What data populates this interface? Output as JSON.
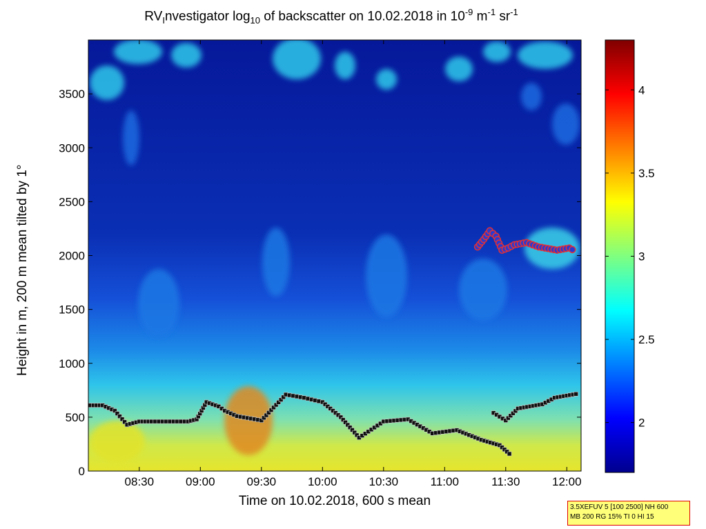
{
  "chart_data": {
    "type": "heatmap",
    "title_parts": {
      "prefix": "RV",
      "prefix_sub": "I",
      "middle": "nvestigator log",
      "middle_sub": "10",
      "rest": " of backscatter on 10.02.2018 in 10",
      "exp1": "-9",
      "unit1": " m",
      "exp2": "-1",
      "unit2": " sr",
      "exp3": "-1"
    },
    "xlabel": "Time on 10.02.2018, 600 s mean",
    "ylabel": "Height in m, 200 m mean tilted by 1°",
    "x_ticks": [
      "08:30",
      "09:00",
      "09:30",
      "10:00",
      "10:30",
      "11:00",
      "11:30",
      "12:00"
    ],
    "x_range_hours": [
      8.083,
      12.117
    ],
    "y_ticks": [
      "0",
      "500",
      "1000",
      "1500",
      "2000",
      "2500",
      "3000",
      "3500"
    ],
    "y_range": [
      0,
      4000
    ],
    "colorbar": {
      "ticks": [
        "2",
        "2.5",
        "3",
        "3.5",
        "4"
      ],
      "range": [
        1.7,
        4.3
      ],
      "colormap": "jet"
    },
    "grid": false,
    "layers": [
      {
        "name": "blue-upper",
        "color": "#0a1f9e"
      },
      {
        "name": "cyan-patches",
        "color": "#2ec8ea"
      },
      {
        "name": "mid-blue",
        "color": "#1a6ae0"
      },
      {
        "name": "lower-cyan",
        "color": "#3ad0e8"
      },
      {
        "name": "surface-yellow",
        "color": "#e0e832"
      }
    ],
    "boundary_layer_heights": {
      "x_hours": [
        8.1,
        8.2,
        8.3,
        8.4,
        8.5,
        8.6,
        8.75,
        8.9,
        8.97,
        9.05,
        9.15,
        9.2,
        9.3,
        9.5,
        9.7,
        9.85,
        10.0,
        10.15,
        10.3,
        10.5,
        10.7,
        10.9,
        11.1,
        11.3,
        11.45,
        11.55
      ],
      "y_m": [
        610,
        610,
        560,
        430,
        460,
        460,
        460,
        460,
        480,
        640,
        600,
        560,
        510,
        470,
        710,
        680,
        640,
        500,
        310,
        460,
        480,
        350,
        380,
        290,
        240,
        140
      ]
    },
    "secondary_heights": {
      "x_hours": [
        11.4,
        11.5,
        11.6,
        11.7,
        11.8,
        11.9,
        12.0,
        12.1
      ],
      "y_m": [
        540,
        470,
        580,
        600,
        620,
        680,
        700,
        720
      ]
    },
    "cloud_base_heights": {
      "x_hours": [
        11.27,
        11.32,
        11.37,
        11.42,
        11.47,
        11.52,
        11.57,
        11.62,
        11.67,
        11.72,
        11.77,
        11.82,
        11.87,
        11.92,
        11.97,
        12.02,
        12.07
      ],
      "y_m": [
        2080,
        2150,
        2230,
        2180,
        2050,
        2070,
        2100,
        2110,
        2120,
        2100,
        2080,
        2070,
        2060,
        2050,
        2060,
        2070,
        2040
      ]
    }
  },
  "info_box": {
    "line1": "3.5XEFUV 5 [100 2500] NH 600",
    "line2": "MB 200 RG 15% TI 0 HI 15"
  }
}
